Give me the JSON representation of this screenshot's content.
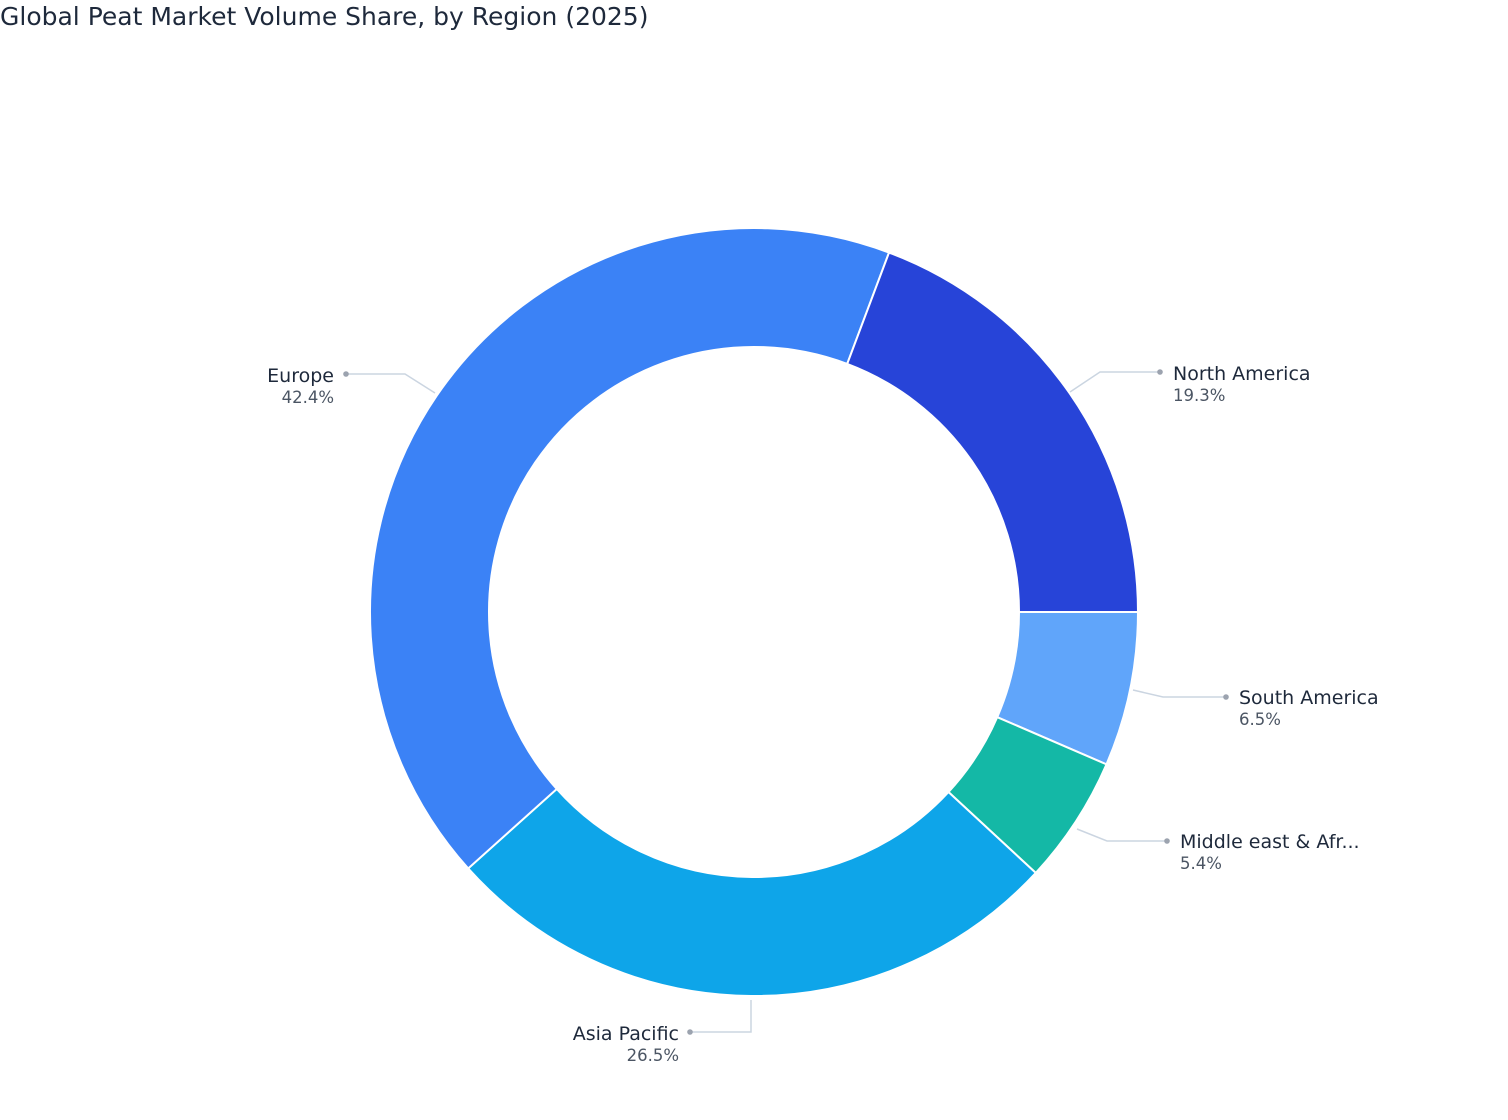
{
  "chart_data": {
    "type": "pie",
    "variant": "donut",
    "title": "Global Peat Market Volume Share, by Region (2025)",
    "unit": "%",
    "start": "3 o'clock, clockwise",
    "slices": [
      {
        "label": "South America",
        "value": 6.5,
        "display": "6.5%",
        "color": "#60a5fa"
      },
      {
        "label": "Middle east & Afr...",
        "value": 5.4,
        "display": "5.4%",
        "color": "#14b8a6"
      },
      {
        "label": "Asia Pacific",
        "value": 26.5,
        "display": "26.5%",
        "color": "#0ea5e9"
      },
      {
        "label": "Europe",
        "value": 42.4,
        "display": "42.4%",
        "color": "#3b82f6"
      },
      {
        "label": "North America",
        "value": 19.3,
        "display": "19.3%",
        "color": "#2744d8"
      }
    ],
    "legend": "none (outside leader-line labels)"
  }
}
